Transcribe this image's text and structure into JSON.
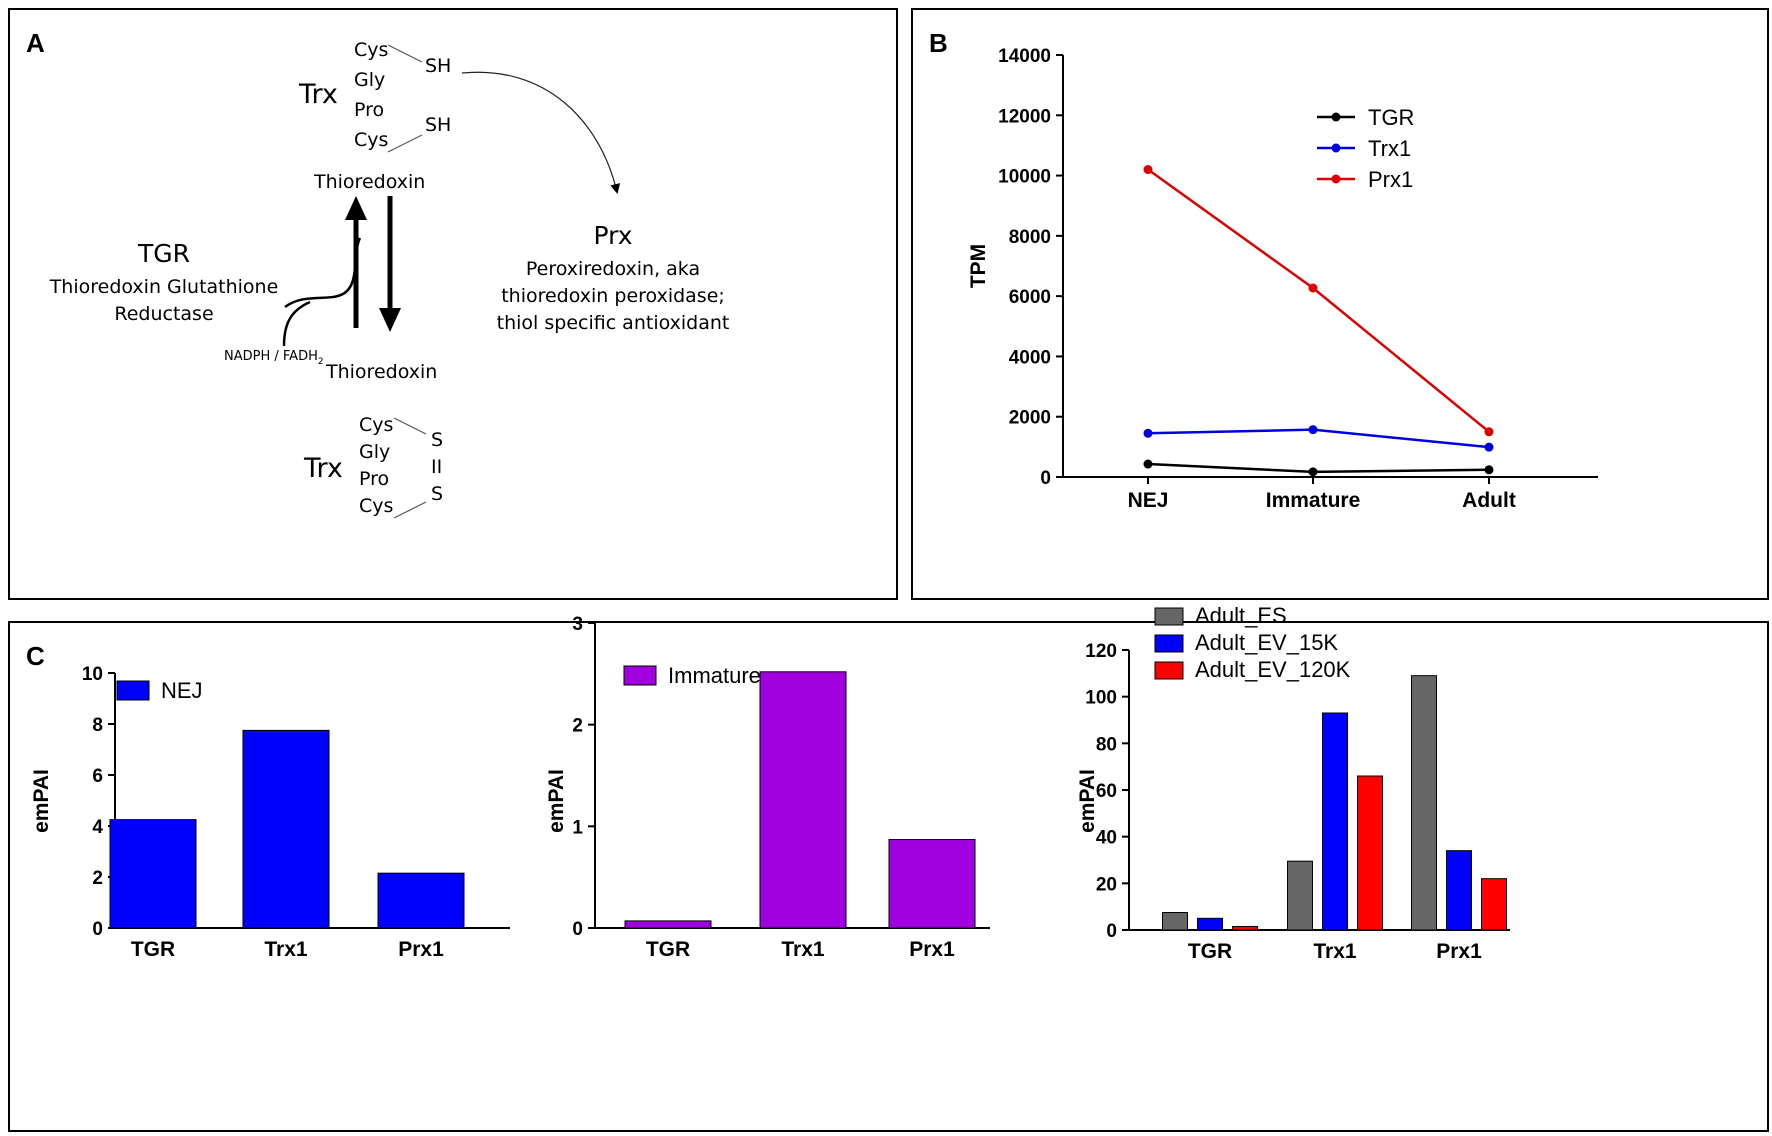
{
  "panel_labels": {
    "a": "A",
    "b": "B",
    "c": "C"
  },
  "diagram": {
    "trx_top": {
      "label": "Trx",
      "residues": [
        "Cys",
        "Gly",
        "Pro",
        "Cys"
      ],
      "sh_top": "SH",
      "sh_bottom": "SH",
      "name": "Thioredoxin"
    },
    "trx_bottom": {
      "label": "Trx",
      "residues": [
        "Cys",
        "Gly",
        "Pro",
        "Cys"
      ],
      "s_top": "S",
      "bond": "II",
      "s_bottom": "S",
      "name": "Thioredoxin"
    },
    "tgr": {
      "label": "TGR",
      "line1": "Thioredoxin Glutathione",
      "line2": "Reductase",
      "cofactor": "NADPH / FADH",
      "cofactor_sub": "2"
    },
    "prx": {
      "label": "Prx",
      "line1": "Peroxiredoxin, aka",
      "line2": "thioredoxin peroxidase;",
      "line3": "thiol specific antioxidant"
    }
  },
  "chart_data": [
    {
      "type": "line",
      "panel": "B",
      "categories": [
        "NEJ",
        "Immature",
        "Adult"
      ],
      "ylabel": "TPM",
      "ylim": [
        0,
        14000
      ],
      "yticks": [
        "0",
        "2000",
        "4000",
        "6000",
        "8000",
        "10000",
        "12000",
        "14000"
      ],
      "legend": "top-right",
      "series": [
        {
          "name": "TGR",
          "color": "#000000",
          "values": [
            430,
            170,
            240
          ]
        },
        {
          "name": "Trx1",
          "color": "#0000dd",
          "values": [
            1450,
            1570,
            990
          ]
        },
        {
          "name": "Prx1",
          "color": "#dd0000",
          "values": [
            10200,
            6270,
            1500
          ]
        }
      ]
    },
    {
      "type": "bar",
      "panel": "C",
      "categories": [
        "TGR",
        "Trx1",
        "Prx1"
      ],
      "ylabel": "emPAI",
      "ylim": [
        0,
        10
      ],
      "yticks": [
        "0",
        "2",
        "4",
        "6",
        "8",
        "10"
      ],
      "legend": "top-left",
      "series": [
        {
          "name": "NEJ",
          "color": "#0000ff",
          "values": [
            4.25,
            7.75,
            2.15
          ]
        }
      ]
    },
    {
      "type": "bar",
      "panel": "C",
      "categories": [
        "TGR",
        "Trx1",
        "Prx1"
      ],
      "ylabel": "emPAI",
      "ylim": [
        0,
        3
      ],
      "yticks": [
        "0",
        "1",
        "2",
        "3"
      ],
      "legend": "top-left",
      "series": [
        {
          "name": "Immature",
          "color": "#a000e0",
          "values": [
            0.07,
            2.52,
            0.87
          ]
        }
      ]
    },
    {
      "type": "bar",
      "panel": "C",
      "categories": [
        "TGR",
        "Trx1",
        "Prx1"
      ],
      "ylabel": "emPAI",
      "ylim": [
        0,
        120
      ],
      "yticks": [
        "0",
        "20",
        "40",
        "60",
        "80",
        "100",
        "120"
      ],
      "legend": "top",
      "series": [
        {
          "name": "Adult_ES",
          "color": "#666666",
          "values": [
            7.5,
            29.5,
            109
          ]
        },
        {
          "name": "Adult_EV_15K",
          "color": "#0000ff",
          "values": [
            5,
            93,
            34
          ]
        },
        {
          "name": "Adult_EV_120K",
          "color": "#ff0000",
          "values": [
            1.5,
            66,
            22
          ]
        }
      ]
    }
  ]
}
